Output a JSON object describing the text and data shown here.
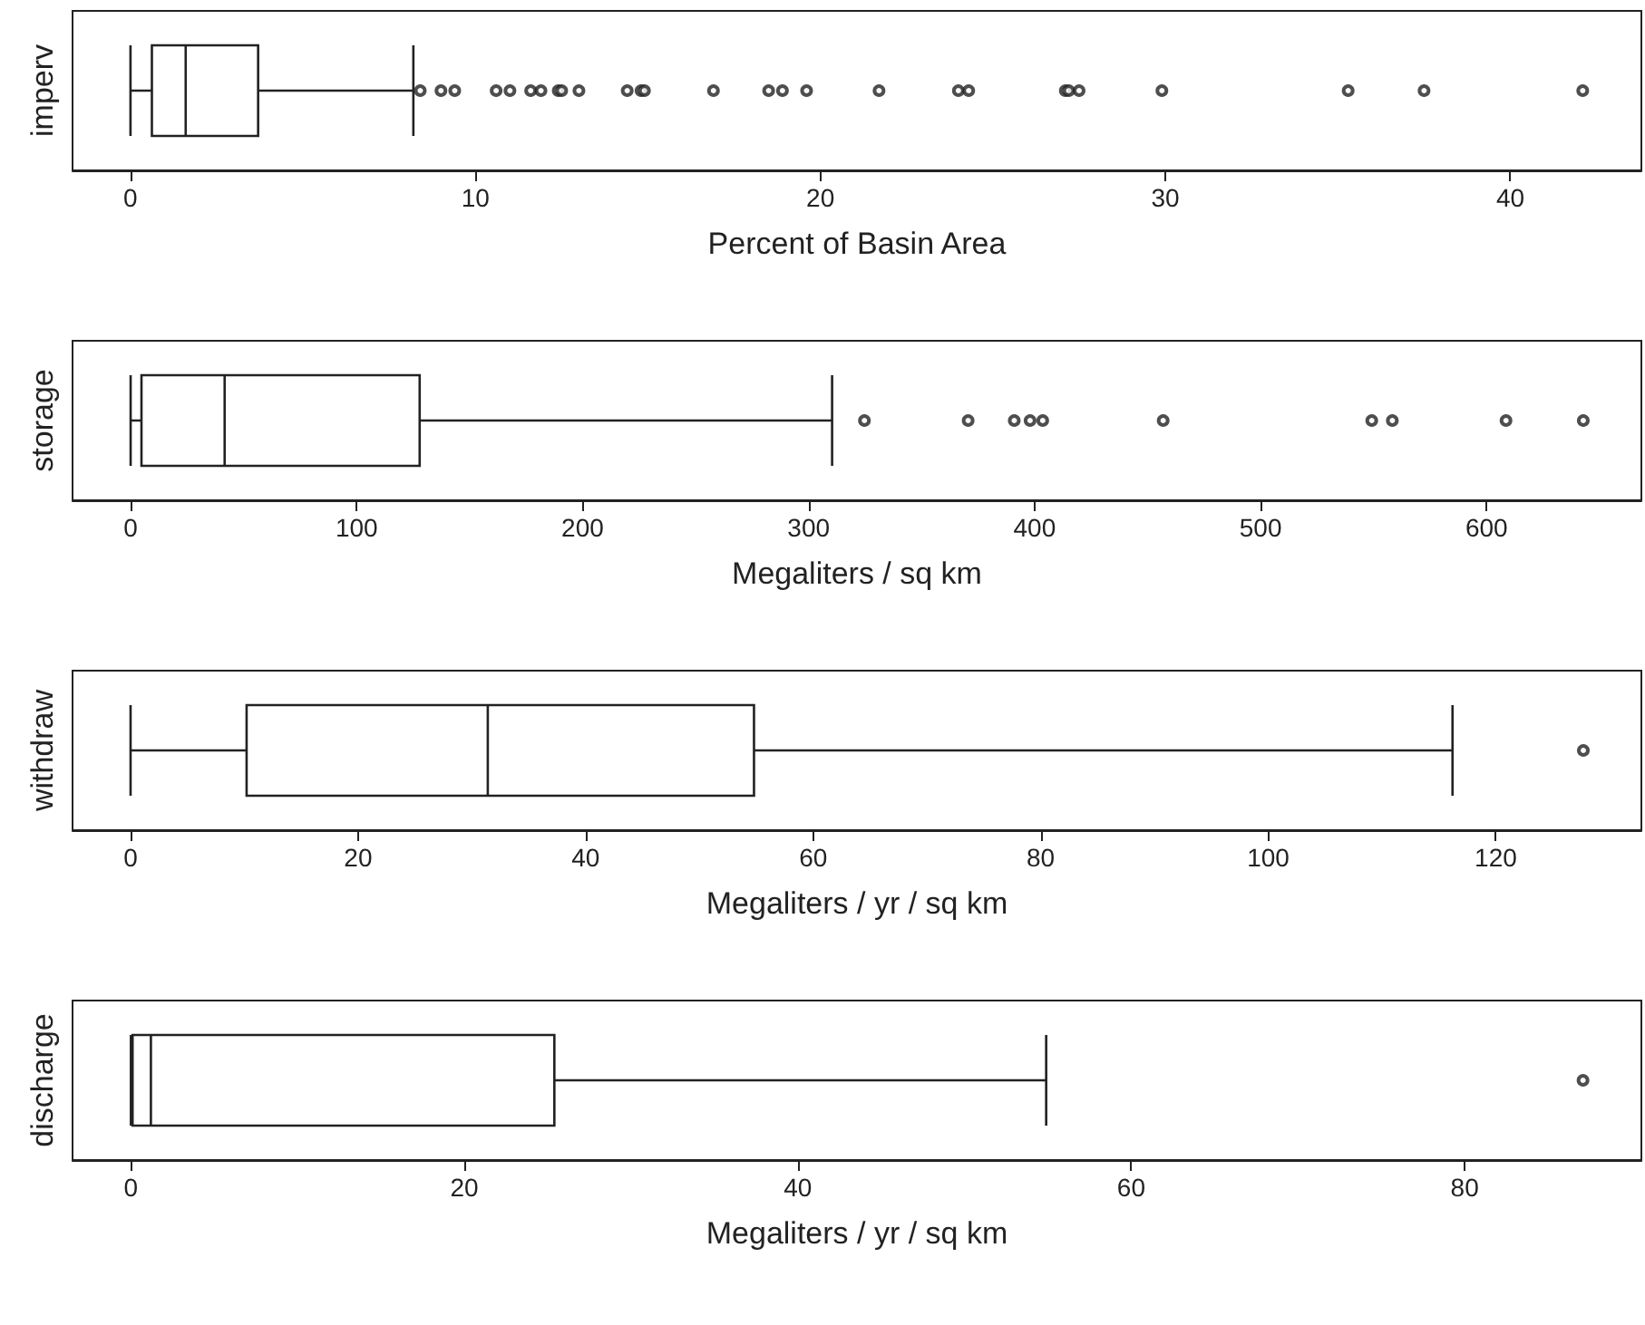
{
  "chart_data": [
    {
      "type": "box",
      "orientation": "horizontal",
      "categories": [
        "imperv"
      ],
      "xlabel": "Percent of Basin Area",
      "xlim": [
        -1.68,
        43.8
      ],
      "xticks": [
        0,
        10,
        20,
        30,
        40
      ],
      "grid": false,
      "marker": "circle",
      "boxes": [
        {
          "low": 0,
          "q1": 0.62,
          "median": 1.6,
          "q3": 3.7,
          "high": 8.2,
          "outliers": [
            8.4,
            9.0,
            9.4,
            10.6,
            11.0,
            11.6,
            11.9,
            12.4,
            12.5,
            13.0,
            14.4,
            14.8,
            14.9,
            16.9,
            18.5,
            18.9,
            19.6,
            21.7,
            24.0,
            24.3,
            27.1,
            27.2,
            27.5,
            29.9,
            35.3,
            37.5,
            42.1
          ]
        }
      ]
    },
    {
      "type": "box",
      "orientation": "horizontal",
      "categories": [
        "storage"
      ],
      "xlabel": "Megaliters / sq km",
      "xlim": [
        -25.7,
        668.5
      ],
      "xticks": [
        0,
        100,
        200,
        300,
        400,
        500,
        600
      ],
      "grid": false,
      "marker": "circle",
      "boxes": [
        {
          "low": 0,
          "q1": 4.8,
          "median": 41.6,
          "q3": 127.9,
          "high": 310.4,
          "outliers": [
            324.7,
            370.6,
            391,
            398,
            403.6,
            456.9,
            549.2,
            558.3,
            608.6,
            642.8
          ]
        }
      ]
    },
    {
      "type": "box",
      "orientation": "horizontal",
      "categories": [
        "withdraw"
      ],
      "xlabel": "Megaliters / yr / sq km",
      "xlim": [
        -5.1,
        132.8
      ],
      "xticks": [
        0,
        20,
        40,
        60,
        80,
        100,
        120
      ],
      "grid": false,
      "marker": "circle",
      "boxes": [
        {
          "low": 0,
          "q1": 10.2,
          "median": 31.4,
          "q3": 54.8,
          "high": 116.2,
          "outliers": [
            127.7
          ]
        }
      ]
    },
    {
      "type": "box",
      "orientation": "horizontal",
      "categories": [
        "discharge"
      ],
      "xlabel": "Megaliters / yr / sq km",
      "xlim": [
        -3.5,
        90.6
      ],
      "xticks": [
        0,
        20,
        40,
        60,
        80
      ],
      "grid": false,
      "marker": "circle",
      "boxes": [
        {
          "low": 0,
          "q1": 0.1,
          "median": 1.2,
          "q3": 25.4,
          "high": 54.9,
          "outliers": [
            87.1
          ]
        }
      ]
    }
  ]
}
